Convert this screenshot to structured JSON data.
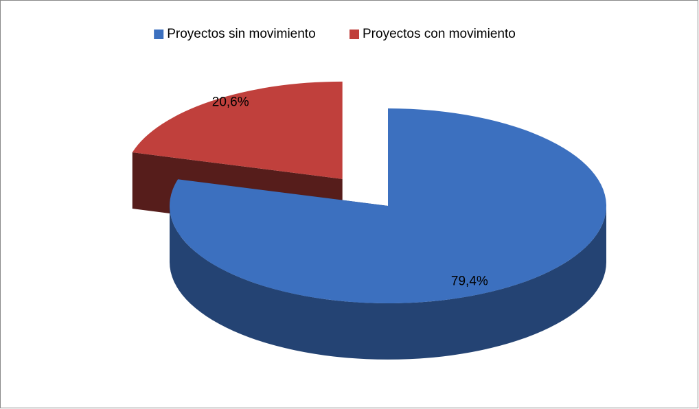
{
  "chart_data": {
    "type": "pie3d",
    "categories": [
      "Proyectos sin movimiento",
      "Proyectos con movimiento"
    ],
    "values": [
      79.4,
      20.6
    ],
    "value_labels": [
      "79,4%",
      "20,6%"
    ],
    "colors": [
      "#3c70bf",
      "#c0403c"
    ],
    "legend": "top"
  }
}
